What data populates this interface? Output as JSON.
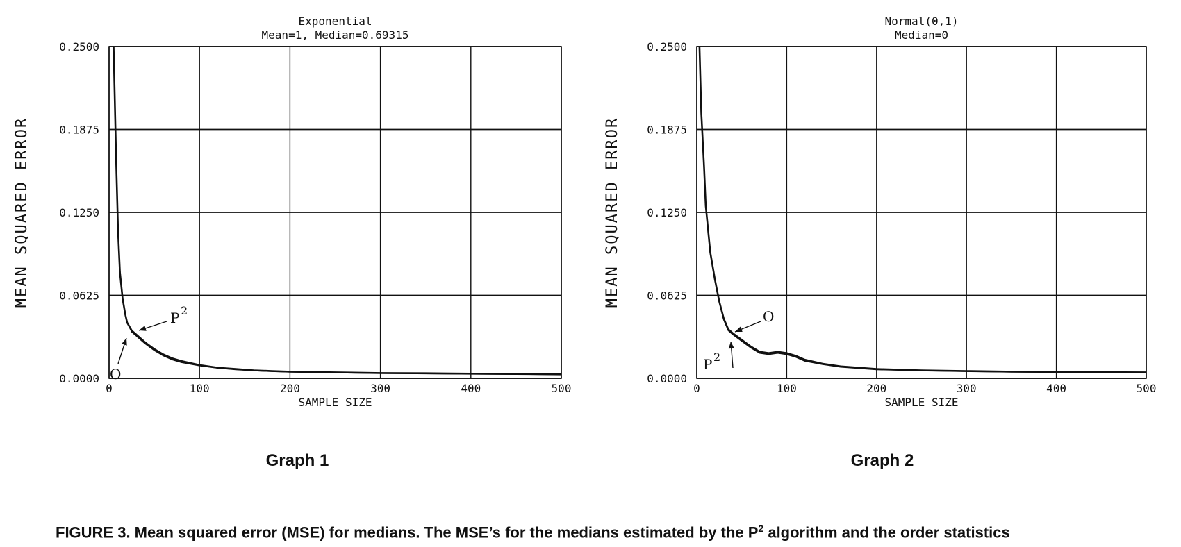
{
  "chart_data": [
    {
      "type": "line",
      "title": "Exponential",
      "subtitle": "Mean=1, Median=0.69315",
      "xlabel": "SAMPLE SIZE",
      "ylabel": "MEAN SQUARED ERROR",
      "xlim": [
        0,
        500
      ],
      "ylim": [
        0,
        0.25
      ],
      "xticks": [
        "0",
        "100",
        "200",
        "300",
        "400",
        "500"
      ],
      "yticks": [
        "0.0000",
        "0.0625",
        "0.1250",
        "0.1875",
        "0.2500"
      ],
      "grid": true,
      "series": [
        {
          "name": "P2",
          "x": [
            5,
            8,
            10,
            12,
            15,
            18,
            20,
            25,
            30,
            35,
            40,
            50,
            60,
            70,
            80,
            100,
            120,
            140,
            160,
            180,
            200,
            250,
            300,
            350,
            400,
            450,
            500
          ],
          "y": [
            0.25,
            0.16,
            0.11,
            0.08,
            0.06,
            0.048,
            0.042,
            0.036,
            0.033,
            0.03,
            0.027,
            0.022,
            0.018,
            0.015,
            0.013,
            0.01,
            0.008,
            0.007,
            0.006,
            0.0055,
            0.005,
            0.0045,
            0.004,
            0.0038,
            0.0035,
            0.0033,
            0.003
          ]
        },
        {
          "name": "O",
          "x": [
            5,
            8,
            10,
            12,
            15,
            18,
            20,
            25,
            30,
            35,
            40,
            50,
            60,
            70,
            80,
            100,
            120,
            140,
            160,
            180,
            200,
            250,
            300,
            350,
            400,
            450,
            500
          ],
          "y": [
            0.25,
            0.16,
            0.11,
            0.08,
            0.06,
            0.048,
            0.042,
            0.035,
            0.032,
            0.029,
            0.026,
            0.021,
            0.017,
            0.014,
            0.012,
            0.0095,
            0.0078,
            0.0066,
            0.0058,
            0.0052,
            0.0048,
            0.0042,
            0.0038,
            0.0035,
            0.0033,
            0.0031,
            0.0029
          ]
        }
      ],
      "annotations": [
        {
          "text": "P",
          "sup": "2"
        },
        {
          "text": "O"
        }
      ]
    },
    {
      "type": "line",
      "title": "Normal(0,1)",
      "subtitle": "Median=0",
      "xlabel": "SAMPLE SIZE",
      "ylabel": "MEAN SQUARED ERROR",
      "xlim": [
        0,
        500
      ],
      "ylim": [
        0,
        0.25
      ],
      "xticks": [
        "0",
        "100",
        "200",
        "300",
        "400",
        "500"
      ],
      "yticks": [
        "0.0000",
        "0.0625",
        "0.1250",
        "0.1875",
        "0.2500"
      ],
      "grid": true,
      "series": [
        {
          "name": "P2",
          "x": [
            3,
            5,
            8,
            10,
            15,
            20,
            25,
            30,
            35,
            40,
            50,
            60,
            70,
            80,
            90,
            100,
            110,
            120,
            140,
            160,
            200,
            250,
            300,
            350,
            400,
            450,
            500
          ],
          "y": [
            0.25,
            0.2,
            0.16,
            0.13,
            0.095,
            0.075,
            0.058,
            0.045,
            0.037,
            0.034,
            0.029,
            0.024,
            0.02,
            0.019,
            0.02,
            0.019,
            0.017,
            0.014,
            0.011,
            0.009,
            0.007,
            0.006,
            0.0055,
            0.005,
            0.0048,
            0.0046,
            0.0045
          ]
        },
        {
          "name": "O",
          "x": [
            3,
            5,
            8,
            10,
            15,
            20,
            25,
            30,
            35,
            40,
            50,
            60,
            70,
            80,
            90,
            100,
            110,
            120,
            140,
            160,
            200,
            250,
            300,
            350,
            400,
            450,
            500
          ],
          "y": [
            0.25,
            0.2,
            0.16,
            0.13,
            0.095,
            0.075,
            0.058,
            0.044,
            0.036,
            0.033,
            0.028,
            0.023,
            0.019,
            0.018,
            0.019,
            0.018,
            0.016,
            0.013,
            0.0105,
            0.0085,
            0.0066,
            0.0057,
            0.0052,
            0.0048,
            0.0046,
            0.0044,
            0.0043
          ]
        }
      ],
      "annotations": [
        {
          "text": "O"
        },
        {
          "text": "P",
          "sup": "2"
        }
      ]
    }
  ],
  "graph_labels": [
    "Graph 1",
    "Graph 2"
  ],
  "caption": {
    "lead": "FIGURE 3.   Mean squared error (MSE) for medians. The MSE’s for  the medians estimated by the P",
    "sup": "2",
    "tail": " algorithm and the order statistics"
  }
}
